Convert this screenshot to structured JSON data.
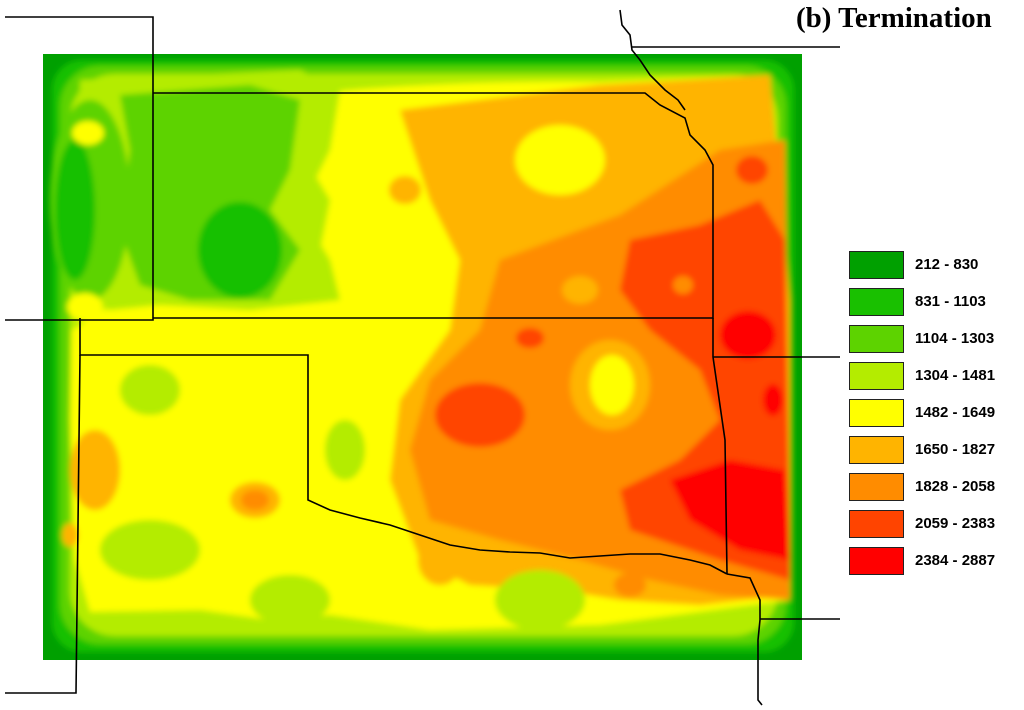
{
  "title": "(b) Termination",
  "legend": {
    "classes": [
      {
        "label": "212 - 830",
        "color": "#00a000"
      },
      {
        "label": "831 - 1103",
        "color": "#19c000"
      },
      {
        "label": "1104 - 1303",
        "color": "#5dd300"
      },
      {
        "label": "1304 - 1481",
        "color": "#b4ec00"
      },
      {
        "label": "1482 - 1649",
        "color": "#ffff00"
      },
      {
        "label": "1650 - 1827",
        "color": "#ffb400"
      },
      {
        "label": "1828 - 2058",
        "color": "#ff8c00"
      },
      {
        "label": "2059 - 2383",
        "color": "#ff4400"
      },
      {
        "label": "2384 - 2887",
        "color": "#ff0000"
      }
    ]
  },
  "map": {
    "background_color": "#00a000",
    "boundary_color": "#000000"
  }
}
